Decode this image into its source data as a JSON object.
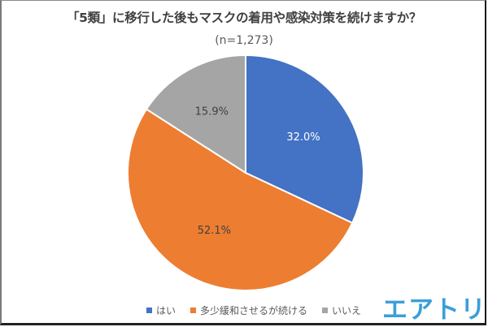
{
  "header": {
    "title": "「5類」に移行した後もマスクの着用や感染対策を続けますか？",
    "subtitle": "(n=1,273)"
  },
  "logo": {
    "text": "エアトリ",
    "color": "#3b9fd8"
  },
  "legend": [
    {
      "label": "はい",
      "color": "#4472c4"
    },
    {
      "label": "多少緩和させるが続ける",
      "color": "#ed7d31"
    },
    {
      "label": "いいえ",
      "color": "#a5a5a5"
    }
  ],
  "chart_data": {
    "type": "pie",
    "title": "「5類」に移行した後もマスクの着用や感染対策を続けますか？",
    "subtitle": "(n=1,273)",
    "categories": [
      "はい",
      "多少緩和させるが続ける",
      "いいえ"
    ],
    "values": [
      32.0,
      52.1,
      15.9
    ],
    "labels": [
      "32.0%",
      "52.1%",
      "15.9%"
    ],
    "colors": [
      "#4472c4",
      "#ed7d31",
      "#a5a5a5"
    ],
    "start_angle": "12 o'clock, clockwise",
    "legend_position": "bottom"
  }
}
